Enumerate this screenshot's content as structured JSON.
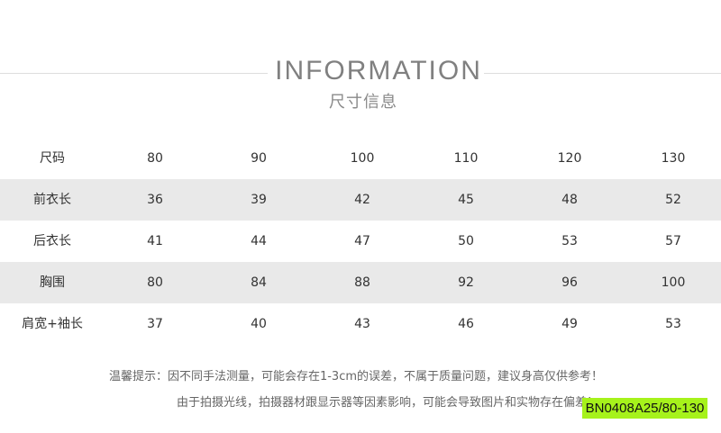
{
  "header": {
    "title": "INFORMATION",
    "subtitle": "尺寸信息"
  },
  "table": {
    "rows": [
      {
        "label": "尺码",
        "values": [
          "80",
          "90",
          "100",
          "110",
          "120",
          "130"
        ]
      },
      {
        "label": "前衣长",
        "values": [
          "36",
          "39",
          "42",
          "45",
          "48",
          "52"
        ]
      },
      {
        "label": "后衣长",
        "values": [
          "41",
          "44",
          "47",
          "50",
          "53",
          "57"
        ]
      },
      {
        "label": "胸围",
        "values": [
          "80",
          "84",
          "88",
          "92",
          "96",
          "100"
        ]
      },
      {
        "label": "肩宽+袖长",
        "values": [
          "37",
          "40",
          "43",
          "46",
          "49",
          "53"
        ]
      }
    ]
  },
  "notes": [
    "温馨提示：因不同手法测量，可能会存在1-3cm的误差，不属于质量问题，建议身高仅供参考！",
    "由于拍摄光线，拍摄器材跟显示器等因素影响，可能会导致图片和实物存在偏差！"
  ],
  "badge": "BN0408A25/80-130",
  "colors": {
    "row_shade": "#e9e9e9",
    "badge": "#a6f21b"
  }
}
